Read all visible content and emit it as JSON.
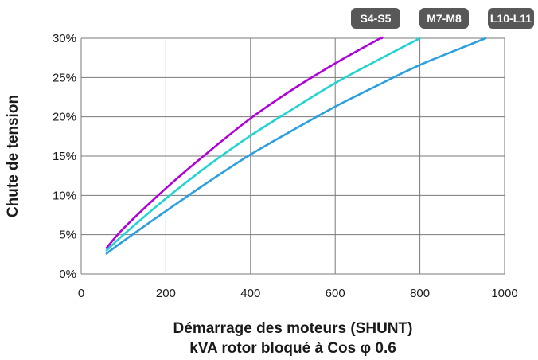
{
  "chart_data": {
    "type": "line",
    "title": "",
    "xlabel": [
      "Démarrage des moteurs (SHUNT)",
      "kVA rotor bloqué à Cos φ 0.6"
    ],
    "ylabel": "Chute de tension",
    "xlim": [
      0,
      1000
    ],
    "ylim": [
      0,
      30
    ],
    "x_ticks": [
      0,
      200,
      400,
      600,
      800,
      1000
    ],
    "x_tick_labels": [
      "0",
      "200",
      "400",
      "600",
      "800",
      "1000"
    ],
    "y_ticks": [
      0,
      5,
      10,
      15,
      20,
      25,
      30
    ],
    "y_tick_labels": [
      "0%",
      "5%",
      "10%",
      "15%",
      "20%",
      "25%",
      "30%"
    ],
    "grid": true,
    "legend_position": "top-right",
    "series": [
      {
        "name": "S4-S5",
        "color": "#b000d8",
        "x": [
          60,
          100,
          200,
          300,
          400,
          500,
          600,
          700,
          710
        ],
        "y": [
          3.3,
          5.8,
          10.9,
          15.5,
          19.8,
          23.5,
          26.8,
          29.8,
          30
        ]
      },
      {
        "name": "M7-M8",
        "color": "#22d3d3",
        "x": [
          60,
          100,
          200,
          300,
          400,
          500,
          600,
          700,
          800
        ],
        "y": [
          3.0,
          5.0,
          9.6,
          13.8,
          17.6,
          21.0,
          24.3,
          27.2,
          30
        ]
      },
      {
        "name": "L10-L11",
        "color": "#2b9fe0",
        "x": [
          60,
          100,
          200,
          300,
          400,
          500,
          600,
          700,
          800,
          900,
          955
        ],
        "y": [
          2.6,
          4.2,
          8.0,
          11.7,
          15.2,
          18.3,
          21.3,
          24.0,
          26.6,
          28.8,
          30
        ]
      }
    ]
  }
}
